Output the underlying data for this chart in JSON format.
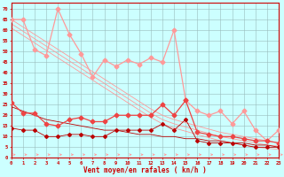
{
  "x": [
    0,
    1,
    2,
    3,
    4,
    5,
    6,
    7,
    8,
    9,
    10,
    11,
    12,
    13,
    14,
    15,
    16,
    17,
    18,
    19,
    20,
    21,
    22,
    23
  ],
  "line_gust_jagged": [
    65,
    65,
    51,
    48,
    70,
    58,
    49,
    38,
    46,
    43,
    46,
    44,
    47,
    45,
    60,
    27,
    22,
    20,
    22,
    16,
    22,
    13,
    8,
    13
  ],
  "line_trend1": [
    65,
    61.5,
    58,
    54.5,
    51,
    47.5,
    44,
    40.5,
    37,
    33.5,
    30,
    26.5,
    23,
    20,
    18,
    16.5,
    15,
    13.5,
    12,
    11,
    10,
    9,
    8,
    7
  ],
  "line_trend2": [
    63,
    59.5,
    56,
    52.5,
    49,
    45.5,
    42,
    38.5,
    35,
    31.5,
    28,
    24.5,
    21,
    18,
    16,
    14.5,
    13,
    11.5,
    10,
    9,
    8,
    7,
    6,
    5.5
  ],
  "line_trend3": [
    61,
    57.5,
    54,
    50.5,
    47,
    43.5,
    40,
    36.5,
    33,
    29.5,
    26,
    22.5,
    19,
    16,
    14,
    12.5,
    11,
    9.5,
    8,
    7,
    6,
    5,
    4.5,
    4
  ],
  "line_mean_wind": [
    26,
    21,
    21,
    16,
    15,
    18,
    19,
    17,
    17,
    20,
    20,
    20,
    20,
    25,
    20,
    27,
    12,
    11,
    10,
    10,
    9,
    8,
    8,
    7
  ],
  "line_mean_trend": [
    24,
    22,
    20,
    18,
    17,
    16,
    15,
    14,
    13,
    13,
    12,
    11,
    11,
    10,
    10,
    9,
    9,
    8,
    8,
    7,
    7,
    6,
    6,
    5
  ],
  "line_min_wind": [
    14,
    13,
    13,
    10,
    10,
    11,
    11,
    10,
    10,
    13,
    13,
    13,
    13,
    16,
    13,
    18,
    8,
    7,
    7,
    7,
    6,
    5,
    5,
    5
  ],
  "color_light_pink": "#FF9999",
  "color_red": "#DD2222",
  "color_dark_red": "#BB0000",
  "color_mid_red": "#EE4444",
  "background": "#CCFFFF",
  "grid_color": "#99BBBB",
  "xlabel": "Vent moyen/en rafales ( kn/h )",
  "ylabel_ticks": [
    0,
    5,
    10,
    15,
    20,
    25,
    30,
    35,
    40,
    45,
    50,
    55,
    60,
    65,
    70
  ],
  "ylim": [
    0,
    73
  ],
  "xlim": [
    0,
    23
  ]
}
